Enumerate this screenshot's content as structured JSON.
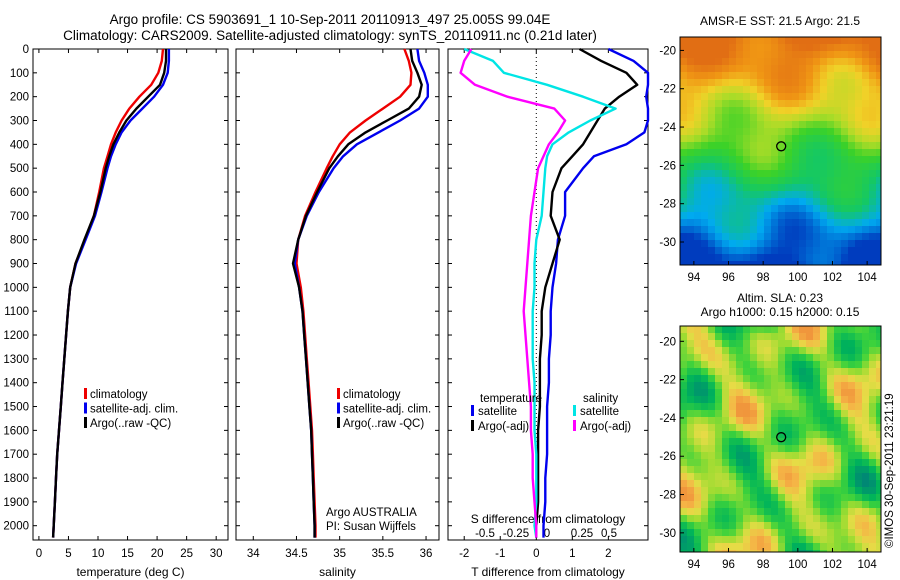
{
  "header": {
    "line1": "Argo profile: CS 5903691_1 10-Sep-2011 20110913_497 25.005S 99.04E",
    "line2": "Climatology: CARS2009. Satellite-adjusted climatology: synTS_20110911.nc (0.21d later)"
  },
  "right_panel": {
    "sst_title": "AMSR-E SST: 21.5 Argo: 21.5",
    "sla_title1": "Altim. SLA: 0.23",
    "sla_title2": "Argo h1000: 0.15 h2000: 0.15",
    "credit": "©IMOS 30-Sep-2011 23:21:19",
    "lon_ticks": [
      "94",
      "96",
      "98",
      "100",
      "102",
      "104"
    ],
    "lat_ticks": [
      "-20",
      "-22",
      "-24",
      "-26",
      "-28",
      "-30"
    ],
    "argo_position": {
      "lon": 99.04,
      "lat": -25.005
    }
  },
  "colors": {
    "climatology": "#ee0000",
    "satellite": "#0000ee",
    "argo": "#000000",
    "sat_salinity": "#00e5e5",
    "argo_salinity": "#ff00ff"
  },
  "depth_axis": {
    "ticks": [
      "0",
      "100",
      "200",
      "300",
      "400",
      "500",
      "600",
      "700",
      "800",
      "900",
      "1000",
      "1100",
      "1200",
      "1300",
      "1400",
      "1500",
      "1600",
      "1700",
      "1800",
      "1900",
      "2000"
    ]
  },
  "chart_data": [
    {
      "type": "line",
      "xlabel": "temperature (deg C)",
      "xlim": [
        -1,
        32
      ],
      "ylim": [
        2060,
        0
      ],
      "xticks": [
        "0",
        "5",
        "10",
        "15",
        "20",
        "25",
        "30"
      ],
      "legend": [
        "climatology",
        "satellite-adj. clim.",
        "Argo(..raw -QC)"
      ],
      "y": [
        0,
        50,
        100,
        150,
        200,
        250,
        300,
        350,
        400,
        450,
        500,
        600,
        700,
        800,
        900,
        1000,
        1100,
        1200,
        1300,
        1400,
        1500,
        1600,
        1700,
        1800,
        1900,
        2000,
        2050
      ],
      "series": [
        {
          "name": "climatology",
          "values": [
            21,
            20.8,
            20.2,
            19,
            17,
            15.3,
            14,
            13,
            12.2,
            11.6,
            11,
            10.2,
            9.3,
            7.8,
            6.2,
            5.3,
            4.9,
            4.6,
            4.3,
            4.0,
            3.7,
            3.4,
            3.1,
            2.9,
            2.7,
            2.5,
            2.4
          ]
        },
        {
          "name": "satellite-adj. clim.",
          "values": [
            22,
            22,
            21.8,
            21,
            19.5,
            17.5,
            15.5,
            14,
            13,
            12.2,
            11.6,
            10.6,
            9.5,
            7.9,
            6.3,
            5.3,
            4.9,
            4.6,
            4.3,
            4.0,
            3.7,
            3.4,
            3.1,
            2.9,
            2.7,
            2.5,
            2.4
          ]
        },
        {
          "name": "Argo(..raw -QC)",
          "values": [
            21.5,
            21.5,
            21.2,
            20.5,
            18.5,
            16.5,
            14.8,
            13.6,
            12.6,
            11.9,
            11.3,
            10.4,
            9.3,
            7.7,
            6.2,
            5.3,
            4.9,
            4.6,
            4.3,
            4.0,
            3.7,
            3.4,
            3.1,
            2.9,
            2.7,
            2.5,
            2.4
          ]
        }
      ]
    },
    {
      "type": "line",
      "xlabel": "salinity",
      "xlim": [
        33.8,
        36.15
      ],
      "ylim": [
        2060,
        0
      ],
      "xticks": [
        "34",
        "34.5",
        "35",
        "35.5",
        "36"
      ],
      "legend": [
        "climatology",
        "satellite-adj. clim.",
        "Argo(..raw -QC)"
      ],
      "annotation1": "Argo AUSTRALIA",
      "annotation2": "PI: Susan Wijffels",
      "y": [
        0,
        50,
        100,
        150,
        200,
        250,
        300,
        350,
        400,
        450,
        500,
        600,
        700,
        800,
        900,
        1000,
        1100,
        1200,
        1300,
        1400,
        1500,
        1600,
        1700,
        1800,
        1900,
        2000,
        2050
      ],
      "series": [
        {
          "name": "climatology",
          "values": [
            35.75,
            35.8,
            35.83,
            35.82,
            35.7,
            35.5,
            35.3,
            35.12,
            35.0,
            34.92,
            34.85,
            34.72,
            34.6,
            34.52,
            34.5,
            34.55,
            34.58,
            34.6,
            34.62,
            34.64,
            34.66,
            34.68,
            34.69,
            34.7,
            34.71,
            34.72,
            34.72
          ]
        },
        {
          "name": "satellite-adj. clim.",
          "values": [
            35.9,
            35.92,
            35.98,
            36.02,
            36.02,
            35.92,
            35.7,
            35.45,
            35.2,
            35.04,
            34.93,
            34.76,
            34.62,
            34.52,
            34.48,
            34.53,
            34.57,
            34.59,
            34.61,
            34.63,
            34.65,
            34.67,
            34.68,
            34.69,
            34.7,
            34.71,
            34.71
          ]
        },
        {
          "name": "Argo(..raw -QC)",
          "values": [
            35.82,
            35.84,
            35.9,
            35.95,
            35.92,
            35.8,
            35.55,
            35.3,
            35.1,
            34.98,
            34.88,
            34.74,
            34.61,
            34.52,
            34.46,
            34.53,
            34.57,
            34.59,
            34.61,
            34.63,
            34.65,
            34.67,
            34.68,
            34.69,
            34.7,
            34.71,
            34.71
          ]
        }
      ]
    },
    {
      "type": "line",
      "title": "S difference from climatology",
      "xlabel": "T difference from climatology",
      "xlim": [
        -2.45,
        3.1
      ],
      "ylim": [
        2060,
        0
      ],
      "xticks": [
        "-2",
        "-1",
        "0",
        "1",
        "2"
      ],
      "top_ticks": [
        "-0.5",
        "-0.25",
        "0",
        "0.25",
        "0.5"
      ],
      "legend_headers": [
        "temperature",
        "salinity"
      ],
      "legend": [
        "satellite",
        "Argo(-adj)",
        "satellite",
        "Argo(-adj)"
      ],
      "y": [
        0,
        50,
        100,
        150,
        200,
        250,
        300,
        350,
        400,
        450,
        500,
        600,
        700,
        800,
        900,
        1000,
        1100,
        1200,
        1300,
        1400,
        1500,
        1600,
        1700,
        1800,
        1900,
        2000,
        2050
      ],
      "series": [
        {
          "name": "satellite",
          "quantity": "temperature",
          "values": [
            2.0,
            2.7,
            3.5,
            3.2,
            3.05,
            3.3,
            3.4,
            3.0,
            2.5,
            1.6,
            1.3,
            0.8,
            0.8,
            0.6,
            0.55,
            0.45,
            0.4,
            0.4,
            0.35,
            0.35,
            0.3,
            0.3,
            0.3,
            0.25,
            0.25,
            0.2,
            0.2
          ]
        },
        {
          "name": "Argo(-adj)",
          "quantity": "temperature",
          "values": [
            1.2,
            1.8,
            2.5,
            2.8,
            2.3,
            1.9,
            1.7,
            1.5,
            1.3,
            1.0,
            0.7,
            0.45,
            0.4,
            0.65,
            0.45,
            0.25,
            0.15,
            0.15,
            0.1,
            0.1,
            0.1,
            0.05,
            0.05,
            0.05,
            0.05,
            0.0,
            0.0
          ]
        },
        {
          "name": "satellite",
          "quantity": "salinity",
          "values": [
            -2.0,
            -1.2,
            -0.9,
            0.3,
            1.3,
            2.2,
            1.5,
            0.9,
            0.45,
            0.3,
            0.25,
            0.2,
            0.15,
            0.0,
            -0.05,
            -0.05,
            -0.1,
            -0.1,
            -0.1,
            -0.05,
            -0.05,
            -0.05,
            0.0,
            0.0,
            0.0,
            -0.05,
            0.0
          ]
        },
        {
          "name": "Argo(-adj)",
          "quantity": "salinity",
          "values": [
            -1.8,
            -2.0,
            -2.1,
            -1.7,
            -0.8,
            0.5,
            0.8,
            0.6,
            0.35,
            0.2,
            0.05,
            -0.05,
            -0.15,
            -0.2,
            -0.25,
            -0.3,
            -0.35,
            -0.3,
            -0.25,
            -0.2,
            -0.15,
            -0.15,
            -0.1,
            -0.1,
            -0.05,
            0.0,
            0.0
          ]
        }
      ]
    }
  ]
}
